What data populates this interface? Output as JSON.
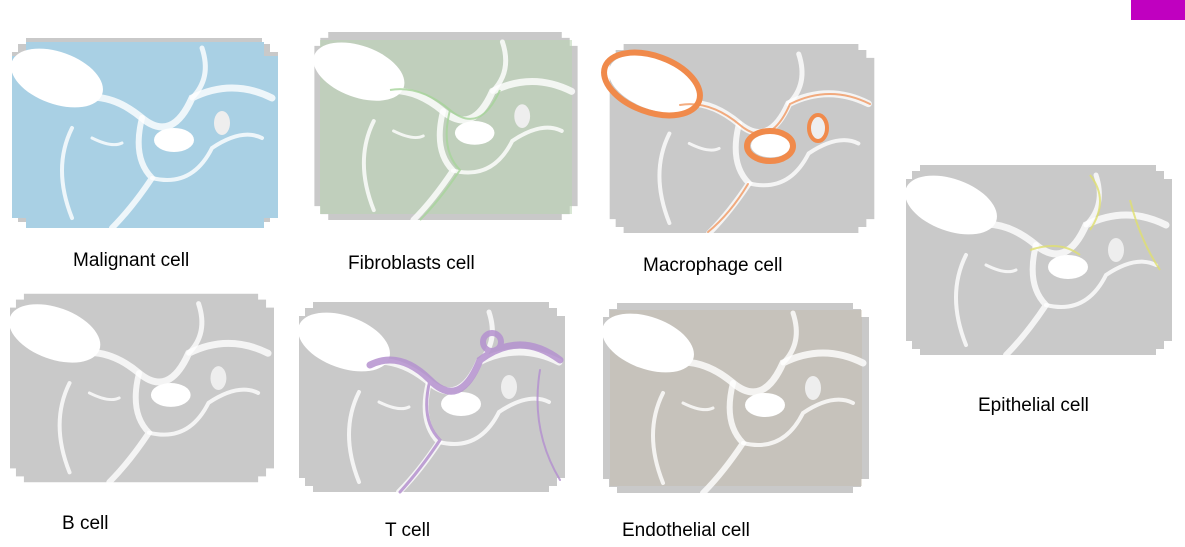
{
  "panels": [
    {
      "label": "Malignant  cell"
    },
    {
      "label": "Fibroblasts cell"
    },
    {
      "label": "Macrophage cell"
    },
    {
      "label": "Epithelial cell"
    },
    {
      "label": "B cell"
    },
    {
      "label": "T cell"
    },
    {
      "label": "Endothelial cell"
    }
  ]
}
